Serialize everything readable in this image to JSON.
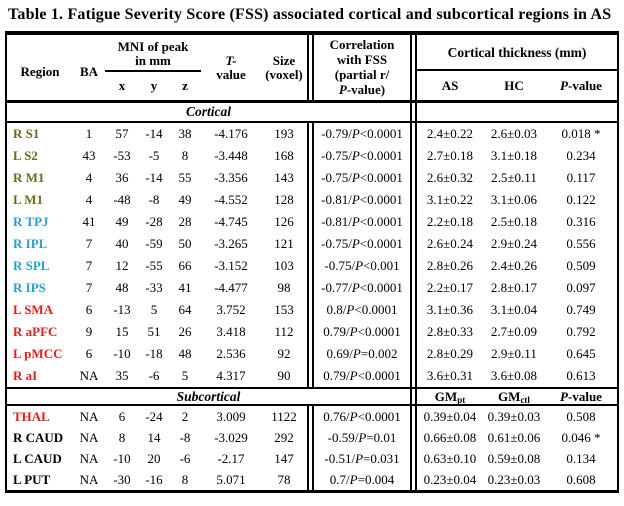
{
  "title": "Table 1. Fatigue Severity Score (FSS) associated cortical and subcortical regions in AS",
  "colors": {
    "olive": "#6e6a1c",
    "blue": "#2a9fd0",
    "red": "#e02020",
    "black": "#000000"
  },
  "header": {
    "region": "Region",
    "ba": "BA",
    "mni_line1": "MNI of peak",
    "mni_line2": "in mm",
    "x": "x",
    "y": "y",
    "z": "z",
    "t_line1": "T-",
    "t_line2": "value",
    "size_line1": "Size",
    "size_line2": "(voxel)",
    "correlation_line1": "Correlation",
    "correlation_line2": "with FSS",
    "correlation_line3": "(partial r/",
    "correlation_line4": "P-value)",
    "thickness": "Cortical thickness (mm)",
    "as_label": "AS",
    "hc_label": "HC",
    "pvalue": "P-value"
  },
  "sections": [
    {
      "label": "Cortical",
      "right_header": null,
      "rows": [
        {
          "region": "R S1",
          "color": "olive",
          "ba": "1",
          "x": "57",
          "y": "-14",
          "z": "38",
          "t": "-4.176",
          "size": "193",
          "corr": "-0.79/P<0.0001",
          "as": "2.4±0.22",
          "hc": "2.6±0.03",
          "p": "0.018 *"
        },
        {
          "region": "L S2",
          "color": "olive",
          "ba": "43",
          "x": "-53",
          "y": "-5",
          "z": "8",
          "t": "-3.448",
          "size": "168",
          "corr": "-0.75/P<0.0001",
          "as": "2.7±0.18",
          "hc": "3.1±0.18",
          "p": "0.234"
        },
        {
          "region": "R M1",
          "color": "olive",
          "ba": "4",
          "x": "36",
          "y": "-14",
          "z": "55",
          "t": "-3.356",
          "size": "143",
          "corr": "-0.75/P<0.0001",
          "as": "2.6±0.32",
          "hc": "2.5±0.11",
          "p": "0.117"
        },
        {
          "region": "L M1",
          "color": "olive",
          "ba": "4",
          "x": "-48",
          "y": "-8",
          "z": "49",
          "t": "-4.552",
          "size": "128",
          "corr": "-0.81/P<0.0001",
          "as": "3.1±0.22",
          "hc": "3.1±0.06",
          "p": "0.122"
        },
        {
          "region": "R TPJ",
          "color": "blue",
          "ba": "41",
          "x": "49",
          "y": "-28",
          "z": "28",
          "t": "-4.745",
          "size": "126",
          "corr": "-0.81/P<0.0001",
          "as": "2.2±0.18",
          "hc": "2.5±0.18",
          "p": "0.316"
        },
        {
          "region": "R IPL",
          "color": "blue",
          "ba": "7",
          "x": "40",
          "y": "-59",
          "z": "50",
          "t": "-3.265",
          "size": "121",
          "corr": "-0.75/P<0.0001",
          "as": "2.6±0.24",
          "hc": "2.9±0.24",
          "p": "0.556"
        },
        {
          "region": "R SPL",
          "color": "blue",
          "ba": "7",
          "x": "12",
          "y": "-55",
          "z": "66",
          "t": "-3.152",
          "size": "103",
          "corr": "-0.75/P<0.001",
          "as": "2.8±0.26",
          "hc": "2.4±0.26",
          "p": "0.509"
        },
        {
          "region": "R IPS",
          "color": "blue",
          "ba": "7",
          "x": "48",
          "y": "-33",
          "z": "41",
          "t": "-4.477",
          "size": "98",
          "corr": "-0.77/P<0.0001",
          "as": "2.2±0.17",
          "hc": "2.8±0.17",
          "p": "0.097"
        },
        {
          "region": "L SMA",
          "color": "red",
          "ba": "6",
          "x": "-13",
          "y": "5",
          "z": "64",
          "t": "3.752",
          "size": "153",
          "corr": "0.8/P<0.0001",
          "as": "3.1±0.36",
          "hc": "3.1±0.04",
          "p": "0.749"
        },
        {
          "region": "R aPFC",
          "color": "red",
          "ba": "9",
          "x": "15",
          "y": "51",
          "z": "26",
          "t": "3.418",
          "size": "112",
          "corr": "0.79/P<0.0001",
          "as": "2.8±0.33",
          "hc": "2.7±0.09",
          "p": "0.792"
        },
        {
          "region": "L pMCC",
          "color": "red",
          "ba": "6",
          "x": "-10",
          "y": "-18",
          "z": "48",
          "t": "2.536",
          "size": "92",
          "corr": "0.69/P=0.002",
          "as": "2.8±0.29",
          "hc": "2.9±0.11",
          "p": "0.645"
        },
        {
          "region": "R aI",
          "color": "red",
          "ba": "NA",
          "x": "35",
          "y": "-6",
          "z": "5",
          "t": "4.317",
          "size": "90",
          "corr": "0.79/P<0.0001",
          "as": "3.6±0.31",
          "hc": "3.6±0.08",
          "p": "0.613"
        }
      ]
    },
    {
      "label": "Subcortical",
      "right_header": {
        "gm1": "GM",
        "gm1_sub": "pt",
        "gm2": "GM",
        "gm2_sub": "ctl",
        "p": "P-value"
      },
      "rows": [
        {
          "region": "THAL",
          "color": "red",
          "ba": "NA",
          "x": "6",
          "y": "-24",
          "z": "2",
          "t": "3.009",
          "size": "1122",
          "corr": "0.76/P<0.0001",
          "as": "0.39±0.04",
          "hc": "0.39±0.03",
          "p": "0.508"
        },
        {
          "region": "R CAUD",
          "color": "black",
          "ba": "NA",
          "x": "8",
          "y": "14",
          "z": "-8",
          "t": "-3.029",
          "size": "292",
          "corr": "-0.59/P=0.01",
          "as": "0.66±0.08",
          "hc": "0.61±0.06",
          "p": "0.046 *"
        },
        {
          "region": "L CAUD",
          "color": "black",
          "ba": "NA",
          "x": "-10",
          "y": "20",
          "z": "-6",
          "t": "-2.17",
          "size": "147",
          "corr": "-0.51/P=0.031",
          "as": "0.63±0.10",
          "hc": "0.59±0.08",
          "p": "0.134"
        },
        {
          "region": "L PUT",
          "color": "black",
          "ba": "NA",
          "x": "-30",
          "y": "-16",
          "z": "8",
          "t": "5.071",
          "size": "78",
          "corr": "0.7/P=0.004",
          "as": "0.23±0.04",
          "hc": "0.23±0.03",
          "p": "0.608"
        }
      ]
    }
  ]
}
